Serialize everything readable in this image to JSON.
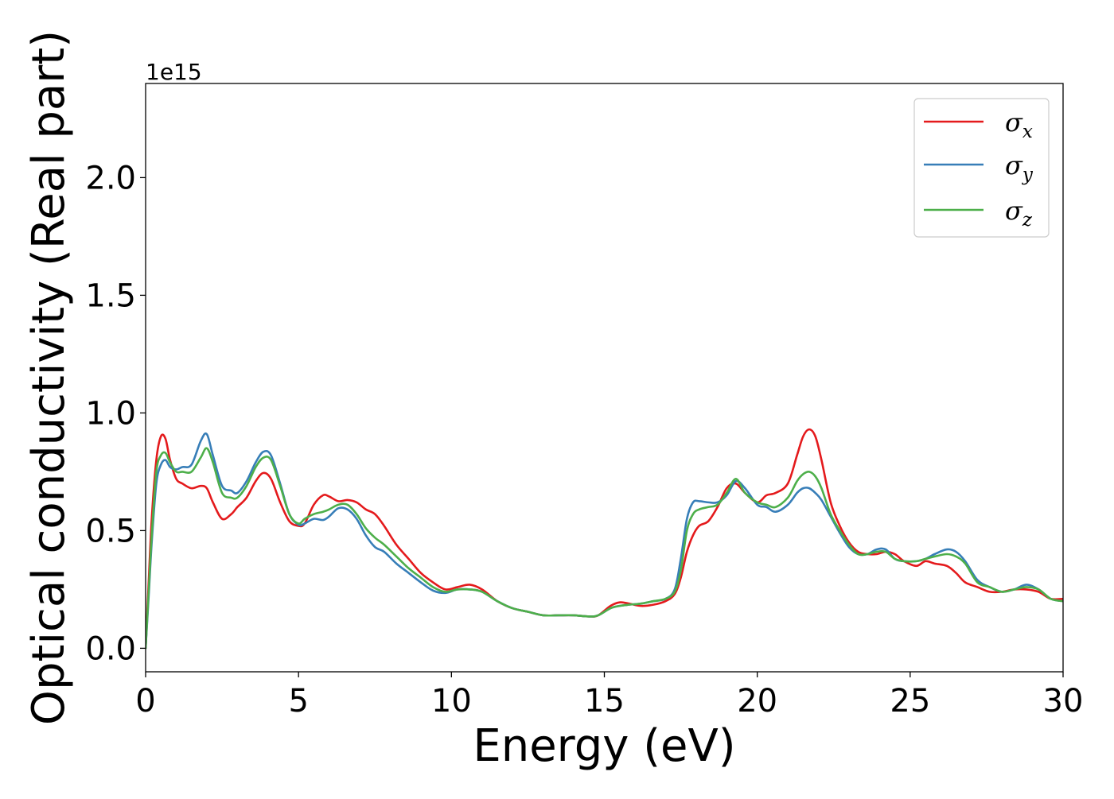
{
  "chart_data": {
    "type": "line",
    "xlabel": "Energy (eV)",
    "ylabel": "Optical conductivity (Real part)",
    "y_offset_text": "1e15",
    "xlim": [
      0,
      30
    ],
    "ylim": [
      -0.1,
      2.4
    ],
    "x_ticks": [
      0,
      5,
      10,
      15,
      20,
      25,
      30
    ],
    "x_tick_labels": [
      "0",
      "5",
      "10",
      "15",
      "20",
      "25",
      "30"
    ],
    "y_ticks": [
      0.0,
      0.5,
      1.0,
      1.5,
      2.0
    ],
    "y_tick_labels": [
      "0.0",
      "0.5",
      "1.0",
      "1.5",
      "2.0"
    ],
    "grid": false,
    "legend_position": "top-right",
    "series": [
      {
        "name": "σ",
        "subscript": "x",
        "color": "#e41a1c",
        "x": [
          0,
          0.1,
          0.2,
          0.35,
          0.5,
          0.65,
          0.8,
          1.0,
          1.2,
          1.5,
          1.8,
          2.0,
          2.2,
          2.5,
          2.8,
          3.0,
          3.3,
          3.6,
          3.85,
          4.1,
          4.4,
          4.7,
          5.0,
          5.2,
          5.5,
          5.8,
          6.0,
          6.3,
          6.6,
          6.9,
          7.2,
          7.5,
          7.8,
          8.2,
          8.6,
          9.0,
          9.4,
          9.8,
          10.2,
          10.6,
          11.0,
          11.5,
          12.0,
          12.5,
          13.0,
          13.5,
          14.0,
          14.5,
          14.8,
          15.2,
          15.5,
          15.8,
          16.2,
          16.6,
          17.0,
          17.3,
          17.5,
          17.7,
          17.9,
          18.1,
          18.4,
          18.7,
          19.0,
          19.3,
          19.6,
          20.0,
          20.3,
          20.6,
          21.0,
          21.3,
          21.5,
          21.7,
          21.9,
          22.1,
          22.4,
          22.7,
          23.0,
          23.3,
          23.6,
          23.9,
          24.2,
          24.5,
          24.8,
          25.2,
          25.5,
          25.8,
          26.2,
          26.5,
          26.8,
          27.2,
          27.6,
          28.0,
          28.4,
          28.8,
          29.2,
          29.6,
          30.0
        ],
        "y": [
          0.0,
          0.28,
          0.55,
          0.8,
          0.9,
          0.89,
          0.8,
          0.72,
          0.7,
          0.68,
          0.69,
          0.68,
          0.62,
          0.55,
          0.57,
          0.6,
          0.64,
          0.71,
          0.745,
          0.72,
          0.62,
          0.54,
          0.52,
          0.53,
          0.61,
          0.65,
          0.645,
          0.625,
          0.63,
          0.62,
          0.59,
          0.57,
          0.52,
          0.44,
          0.38,
          0.32,
          0.28,
          0.25,
          0.26,
          0.27,
          0.25,
          0.2,
          0.17,
          0.155,
          0.14,
          0.14,
          0.14,
          0.135,
          0.14,
          0.18,
          0.195,
          0.19,
          0.18,
          0.185,
          0.2,
          0.23,
          0.3,
          0.41,
          0.48,
          0.52,
          0.54,
          0.6,
          0.68,
          0.7,
          0.66,
          0.62,
          0.65,
          0.66,
          0.7,
          0.82,
          0.9,
          0.93,
          0.9,
          0.8,
          0.62,
          0.52,
          0.45,
          0.41,
          0.4,
          0.4,
          0.41,
          0.4,
          0.37,
          0.35,
          0.37,
          0.36,
          0.35,
          0.32,
          0.28,
          0.26,
          0.24,
          0.24,
          0.25,
          0.25,
          0.24,
          0.21,
          0.21
        ]
      },
      {
        "name": "σ",
        "subscript": "y",
        "color": "#377eb8",
        "x": [
          0,
          0.1,
          0.2,
          0.35,
          0.5,
          0.65,
          0.8,
          1.0,
          1.2,
          1.5,
          1.8,
          2.0,
          2.2,
          2.5,
          2.8,
          3.0,
          3.3,
          3.6,
          3.85,
          4.1,
          4.4,
          4.7,
          5.0,
          5.2,
          5.5,
          5.8,
          6.0,
          6.3,
          6.6,
          6.9,
          7.2,
          7.5,
          7.8,
          8.2,
          8.6,
          9.0,
          9.4,
          9.8,
          10.2,
          10.6,
          11.0,
          11.5,
          12.0,
          12.5,
          13.0,
          13.5,
          14.0,
          14.5,
          14.8,
          15.2,
          15.5,
          15.8,
          16.2,
          16.6,
          17.0,
          17.3,
          17.5,
          17.7,
          17.9,
          18.1,
          18.4,
          18.7,
          19.0,
          19.3,
          19.6,
          20.0,
          20.3,
          20.6,
          21.0,
          21.3,
          21.5,
          21.7,
          21.9,
          22.1,
          22.4,
          22.7,
          23.0,
          23.3,
          23.6,
          23.9,
          24.2,
          24.5,
          24.8,
          25.2,
          25.5,
          25.8,
          26.2,
          26.5,
          26.8,
          27.2,
          27.6,
          28.0,
          28.4,
          28.8,
          29.2,
          29.6,
          30.0
        ],
        "y": [
          0.0,
          0.22,
          0.45,
          0.7,
          0.78,
          0.8,
          0.77,
          0.76,
          0.77,
          0.78,
          0.88,
          0.91,
          0.82,
          0.69,
          0.67,
          0.66,
          0.71,
          0.79,
          0.835,
          0.82,
          0.7,
          0.57,
          0.525,
          0.53,
          0.55,
          0.545,
          0.56,
          0.595,
          0.59,
          0.55,
          0.48,
          0.43,
          0.41,
          0.36,
          0.32,
          0.28,
          0.245,
          0.235,
          0.25,
          0.25,
          0.24,
          0.2,
          0.17,
          0.155,
          0.14,
          0.14,
          0.14,
          0.135,
          0.14,
          0.17,
          0.18,
          0.185,
          0.19,
          0.2,
          0.21,
          0.25,
          0.38,
          0.55,
          0.62,
          0.625,
          0.62,
          0.62,
          0.65,
          0.71,
          0.68,
          0.61,
          0.6,
          0.58,
          0.61,
          0.66,
          0.68,
          0.68,
          0.66,
          0.63,
          0.56,
          0.49,
          0.43,
          0.4,
          0.4,
          0.42,
          0.42,
          0.38,
          0.37,
          0.37,
          0.38,
          0.4,
          0.42,
          0.41,
          0.37,
          0.29,
          0.26,
          0.24,
          0.25,
          0.27,
          0.25,
          0.21,
          0.2
        ]
      },
      {
        "name": "σ",
        "subscript": "z",
        "color": "#4daf4a",
        "x": [
          0,
          0.1,
          0.2,
          0.35,
          0.5,
          0.65,
          0.8,
          1.0,
          1.2,
          1.5,
          1.8,
          2.0,
          2.2,
          2.5,
          2.8,
          3.0,
          3.3,
          3.6,
          3.85,
          4.1,
          4.4,
          4.7,
          5.0,
          5.2,
          5.5,
          5.8,
          6.0,
          6.3,
          6.6,
          6.9,
          7.2,
          7.5,
          7.8,
          8.2,
          8.6,
          9.0,
          9.4,
          9.8,
          10.2,
          10.6,
          11.0,
          11.5,
          12.0,
          12.5,
          13.0,
          13.5,
          14.0,
          14.5,
          14.8,
          15.2,
          15.5,
          15.8,
          16.2,
          16.6,
          17.0,
          17.3,
          17.5,
          17.7,
          17.9,
          18.1,
          18.4,
          18.7,
          19.0,
          19.3,
          19.6,
          20.0,
          20.3,
          20.6,
          21.0,
          21.3,
          21.5,
          21.7,
          21.9,
          22.1,
          22.4,
          22.7,
          23.0,
          23.3,
          23.6,
          23.9,
          24.2,
          24.5,
          24.8,
          25.2,
          25.5,
          25.8,
          26.2,
          26.5,
          26.8,
          27.2,
          27.6,
          28.0,
          28.4,
          28.8,
          29.2,
          29.6,
          30.0
        ],
        "y": [
          0.0,
          0.24,
          0.48,
          0.75,
          0.82,
          0.83,
          0.79,
          0.75,
          0.75,
          0.75,
          0.81,
          0.85,
          0.79,
          0.66,
          0.64,
          0.64,
          0.69,
          0.77,
          0.81,
          0.8,
          0.69,
          0.57,
          0.53,
          0.55,
          0.57,
          0.58,
          0.59,
          0.61,
          0.61,
          0.57,
          0.51,
          0.47,
          0.44,
          0.39,
          0.34,
          0.3,
          0.26,
          0.24,
          0.25,
          0.25,
          0.24,
          0.2,
          0.17,
          0.155,
          0.14,
          0.14,
          0.14,
          0.135,
          0.14,
          0.17,
          0.18,
          0.185,
          0.19,
          0.2,
          0.21,
          0.24,
          0.33,
          0.5,
          0.57,
          0.59,
          0.6,
          0.61,
          0.66,
          0.72,
          0.66,
          0.62,
          0.61,
          0.6,
          0.64,
          0.71,
          0.74,
          0.75,
          0.73,
          0.68,
          0.57,
          0.5,
          0.44,
          0.4,
          0.4,
          0.41,
          0.41,
          0.38,
          0.37,
          0.37,
          0.38,
          0.39,
          0.4,
          0.39,
          0.36,
          0.28,
          0.26,
          0.24,
          0.25,
          0.26,
          0.25,
          0.21,
          0.2
        ]
      }
    ]
  }
}
